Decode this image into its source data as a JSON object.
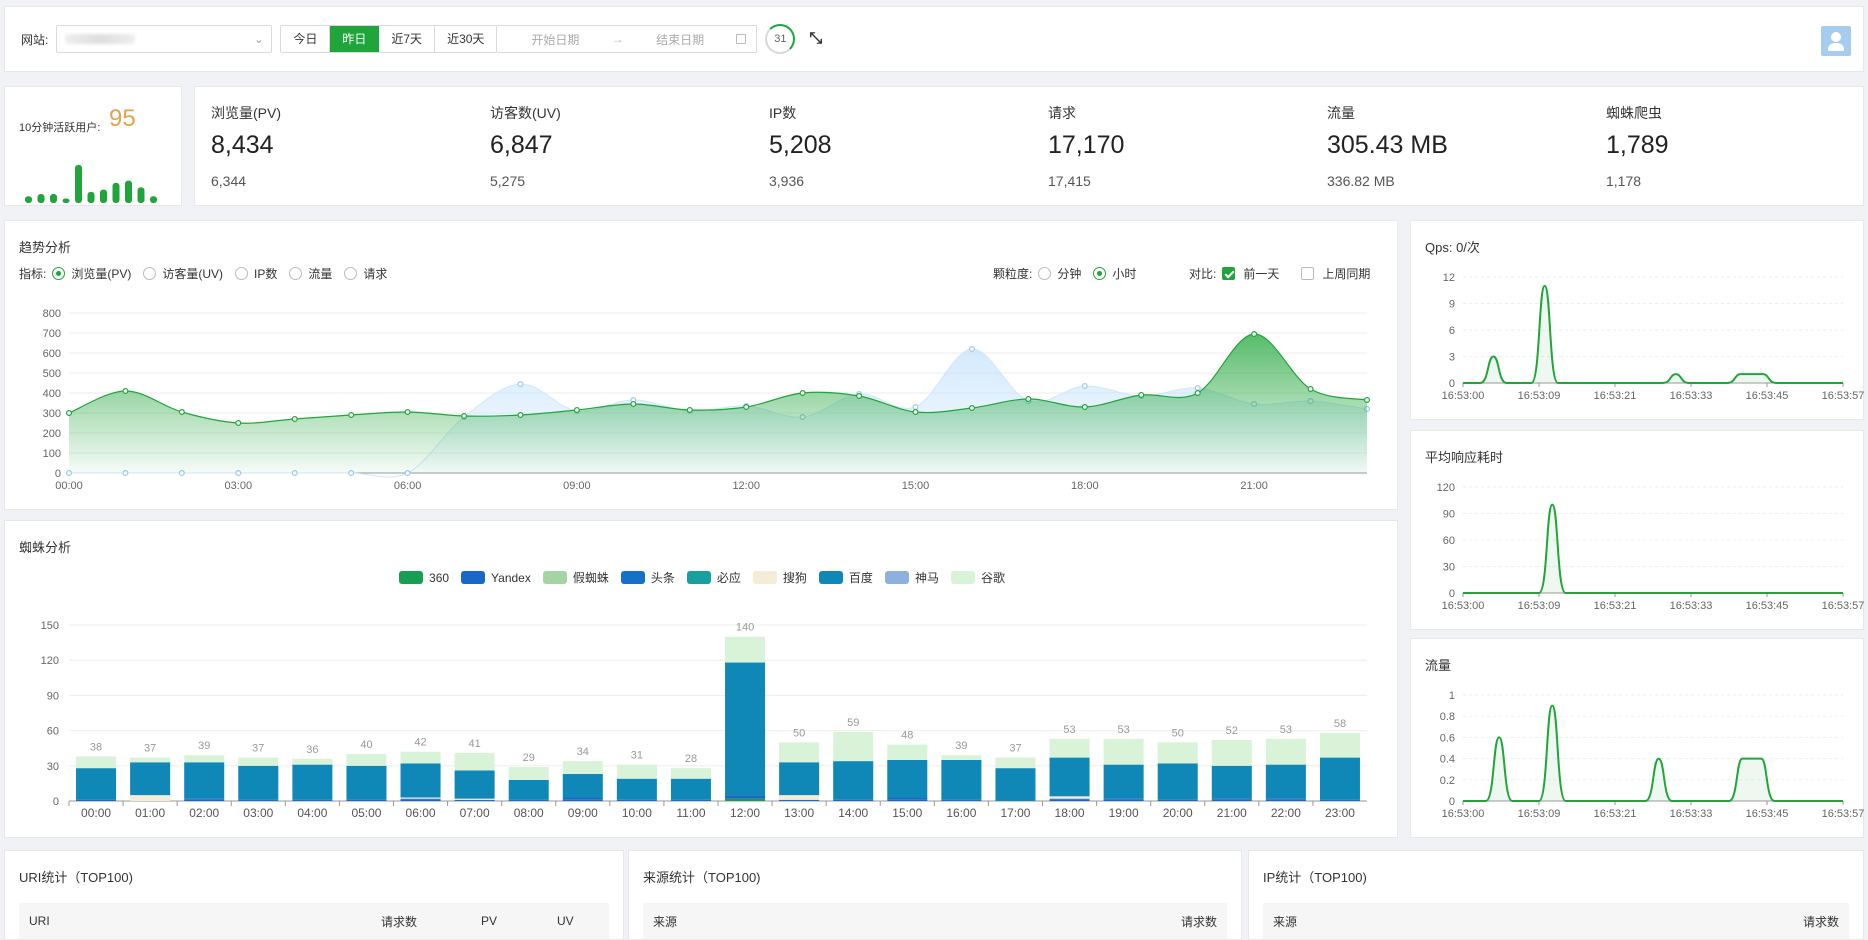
{
  "topbar": {
    "site_label": "网站:",
    "range_buttons": [
      "今日",
      "昨日",
      "近7天",
      "近30天"
    ],
    "active_range": 1,
    "start_placeholder": "开始日期",
    "end_placeholder": "结束日期",
    "refresh_seconds": "31"
  },
  "active_users": {
    "label": "10分钟活跃用户:",
    "value": "95",
    "bars": [
      3,
      4,
      4,
      2,
      17,
      5,
      6,
      9,
      10,
      7,
      3
    ]
  },
  "stats": [
    {
      "name": "浏览量(PV)",
      "value": "8,434",
      "prev": "6,344"
    },
    {
      "name": "访客数(UV)",
      "value": "6,847",
      "prev": "5,275"
    },
    {
      "name": "IP数",
      "value": "5,208",
      "prev": "3,936"
    },
    {
      "name": "请求",
      "value": "17,170",
      "prev": "17,415"
    },
    {
      "name": "流量",
      "value": "305.43 MB",
      "prev": "336.82 MB"
    },
    {
      "name": "蜘蛛爬虫",
      "value": "1,789",
      "prev": "1,178"
    }
  ],
  "trend": {
    "title": "趋势分析",
    "metric_label": "指标:",
    "metrics": [
      "浏览量(PV)",
      "访客量(UV)",
      "IP数",
      "流量",
      "请求"
    ],
    "metric_selected": 0,
    "granularity_label": "颗粒度:",
    "granularity": [
      "分钟",
      "小时"
    ],
    "granularity_selected": 1,
    "compare_label": "对比:",
    "compare": [
      {
        "label": "前一天",
        "checked": true
      },
      {
        "label": "上周同期",
        "checked": false
      }
    ]
  },
  "spider": {
    "title": "蜘蛛分析"
  },
  "qps": {
    "title": "Qps: 0/次"
  },
  "resp": {
    "title": "平均响应耗时"
  },
  "flow": {
    "title": "流量"
  },
  "tables": {
    "uri": {
      "title": "URI统计（TOP100)",
      "cols": [
        "URI",
        "请求数",
        "PV",
        "UV"
      ]
    },
    "src": {
      "title": "来源统计（TOP100)",
      "cols": [
        "来源",
        "请求数"
      ]
    },
    "ip": {
      "title": "IP统计（TOP100)",
      "cols": [
        "来源",
        "请求数"
      ]
    }
  },
  "chart_data": [
    {
      "type": "area",
      "chart": "trend",
      "x": [
        "00:00",
        "01:00",
        "02:00",
        "03:00",
        "04:00",
        "05:00",
        "06:00",
        "07:00",
        "08:00",
        "09:00",
        "10:00",
        "11:00",
        "12:00",
        "13:00",
        "14:00",
        "15:00",
        "16:00",
        "17:00",
        "18:00",
        "19:00",
        "20:00",
        "21:00",
        "22:00",
        "23:00"
      ],
      "xticks": [
        "00:00",
        "03:00",
        "06:00",
        "09:00",
        "12:00",
        "15:00",
        "18:00",
        "21:00"
      ],
      "ylim": [
        0,
        800
      ],
      "yticks": [
        0,
        100,
        200,
        300,
        400,
        500,
        600,
        700,
        800
      ],
      "series": [
        {
          "values": [
            300,
            410,
            305,
            250,
            270,
            290,
            305,
            285,
            290,
            315,
            345,
            315,
            330,
            400,
            385,
            305,
            325,
            370,
            330,
            390,
            400,
            695,
            420,
            365
          ],
          "color": "#20a53a"
        },
        {
          "values": [
            0,
            0,
            0,
            0,
            0,
            0,
            0,
            280,
            445,
            310,
            365,
            310,
            335,
            280,
            395,
            330,
            620,
            360,
            435,
            385,
            425,
            345,
            360,
            320
          ],
          "color": "#b6dbfb"
        }
      ]
    },
    {
      "type": "bar",
      "chart": "spider",
      "categories": [
        "00:00",
        "01:00",
        "02:00",
        "03:00",
        "04:00",
        "05:00",
        "06:00",
        "07:00",
        "08:00",
        "09:00",
        "10:00",
        "11:00",
        "12:00",
        "13:00",
        "14:00",
        "15:00",
        "16:00",
        "17:00",
        "18:00",
        "19:00",
        "20:00",
        "21:00",
        "22:00",
        "23:00"
      ],
      "ylim": [
        0,
        150
      ],
      "yticks": [
        0,
        30,
        60,
        90,
        120,
        150
      ],
      "totals": [
        38,
        37,
        39,
        37,
        36,
        40,
        42,
        41,
        29,
        34,
        31,
        28,
        140,
        50,
        59,
        48,
        39,
        37,
        53,
        53,
        50,
        52,
        53,
        58
      ],
      "series": [
        {
          "name": "360",
          "color": "#189e52",
          "values": [
            0,
            0,
            0,
            0,
            0,
            0,
            0,
            0,
            0,
            0,
            0,
            0,
            2,
            0,
            0,
            0,
            0,
            0,
            0,
            0,
            0,
            0,
            0,
            0
          ]
        },
        {
          "name": "Yandex",
          "color": "#1968c7",
          "values": [
            1,
            0,
            1,
            0,
            0,
            1,
            1,
            0,
            0,
            1,
            0,
            0,
            3,
            0,
            1,
            1,
            0,
            0,
            1,
            1,
            1,
            1,
            1,
            0
          ]
        },
        {
          "name": "假蜘蛛",
          "color": "#a5d3a4",
          "values": [
            0,
            0,
            0,
            0,
            0,
            0,
            0,
            0,
            0,
            0,
            0,
            0,
            0,
            0,
            0,
            0,
            0,
            0,
            0,
            0,
            0,
            0,
            0,
            0
          ]
        },
        {
          "name": "头条",
          "color": "#1570c7",
          "values": [
            0,
            0,
            1,
            1,
            1,
            0,
            1,
            1,
            1,
            2,
            1,
            1,
            0,
            1,
            0,
            2,
            1,
            0,
            1,
            1,
            0,
            1,
            1,
            1
          ]
        },
        {
          "name": "必应",
          "color": "#16a0a0",
          "values": [
            0,
            0,
            0,
            0,
            0,
            0,
            0,
            0,
            0,
            0,
            0,
            0,
            0,
            0,
            0,
            0,
            0,
            0,
            0,
            0,
            0,
            0,
            0,
            0
          ]
        },
        {
          "name": "搜狗",
          "color": "#f4ecd6",
          "values": [
            0,
            5,
            0,
            0,
            0,
            0,
            1,
            1,
            0,
            0,
            0,
            0,
            0,
            4,
            0,
            0,
            0,
            0,
            2,
            0,
            0,
            0,
            0,
            0
          ]
        },
        {
          "name": "百度",
          "color": "#0f88b8",
          "values": [
            27,
            28,
            31,
            29,
            30,
            29,
            29,
            24,
            17,
            20,
            18,
            18,
            113,
            28,
            33,
            32,
            34,
            28,
            33,
            29,
            31,
            28,
            29,
            36
          ]
        },
        {
          "name": "神马",
          "color": "#8eb0df",
          "values": [
            0,
            0,
            0,
            0,
            0,
            0,
            0,
            0,
            0,
            0,
            0,
            0,
            0,
            0,
            0,
            0,
            0,
            0,
            0,
            0,
            0,
            0,
            0,
            0
          ]
        },
        {
          "name": "谷歌",
          "color": "#d8f3d8",
          "values": [
            10,
            4,
            6,
            7,
            5,
            10,
            10,
            15,
            11,
            11,
            12,
            9,
            22,
            17,
            25,
            13,
            4,
            9,
            16,
            22,
            18,
            22,
            22,
            21
          ]
        }
      ]
    },
    {
      "type": "line",
      "chart": "qps",
      "xticks": [
        "16:53:00",
        "16:53:09",
        "16:53:21",
        "16:53:33",
        "16:53:45",
        "16:53:57"
      ],
      "ylim": [
        0,
        12
      ],
      "yticks": [
        0,
        3,
        6,
        9,
        12
      ],
      "peaks": [
        {
          "at": 0.08,
          "h": 3
        },
        {
          "at": 0.215,
          "h": 11
        },
        {
          "at": 0.56,
          "h": 1
        },
        {
          "at": 0.76,
          "h": 1,
          "plateau": 0.06
        }
      ]
    },
    {
      "type": "line",
      "chart": "resp",
      "xticks": [
        "16:53:00",
        "16:53:09",
        "16:53:21",
        "16:53:33",
        "16:53:45",
        "16:53:57"
      ],
      "ylim": [
        0,
        120
      ],
      "yticks": [
        0,
        30,
        60,
        90,
        120
      ],
      "peaks": [
        {
          "at": 0.235,
          "h": 100
        }
      ]
    },
    {
      "type": "line",
      "chart": "flow",
      "xticks": [
        "16:53:00",
        "16:53:09",
        "16:53:21",
        "16:53:33",
        "16:53:45",
        "16:53:57"
      ],
      "ylim": [
        0,
        1
      ],
      "yticks": [
        0,
        0.2,
        0.4,
        0.6,
        0.8,
        1
      ],
      "peaks": [
        {
          "at": 0.095,
          "h": 0.6
        },
        {
          "at": 0.235,
          "h": 0.9
        },
        {
          "at": 0.515,
          "h": 0.4
        },
        {
          "at": 0.76,
          "h": 0.4,
          "plateau": 0.05
        }
      ]
    }
  ]
}
